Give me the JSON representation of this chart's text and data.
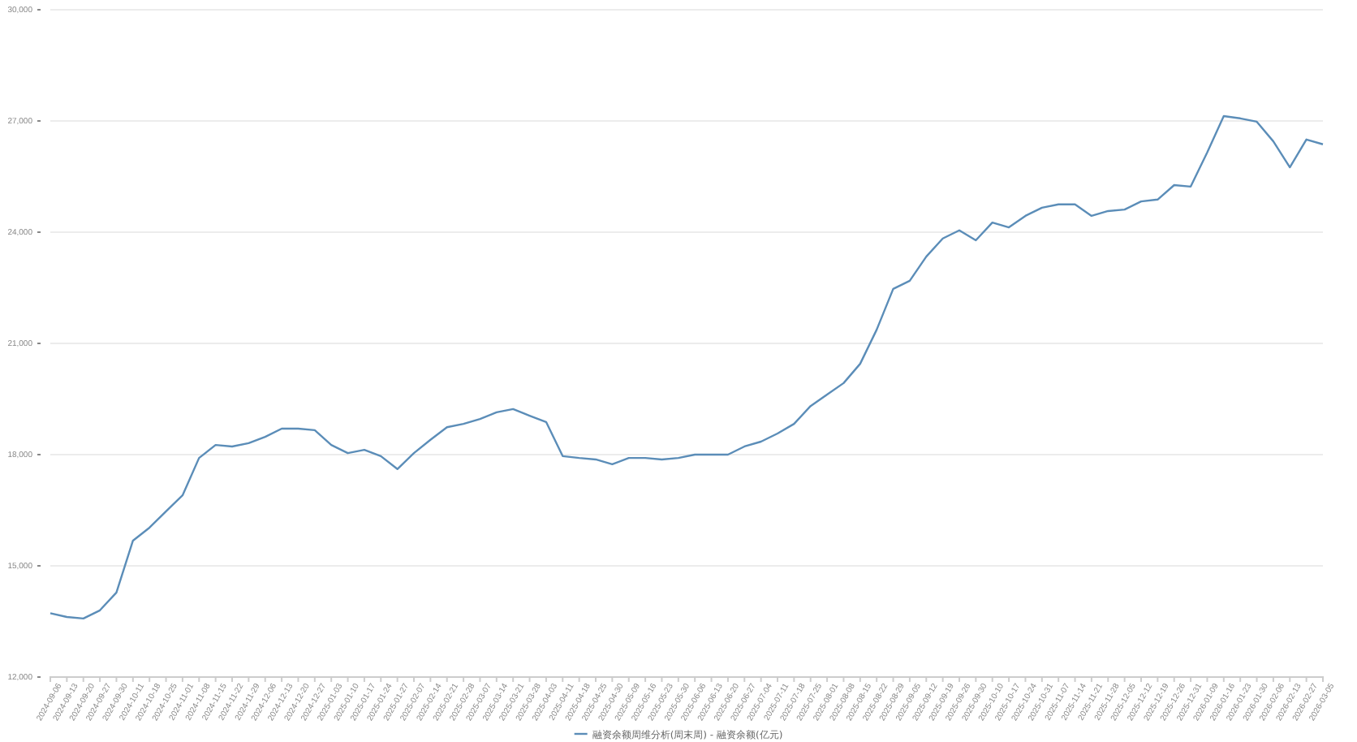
{
  "chart_data": {
    "type": "line",
    "categories": [
      "2024-09-06",
      "2024-09-13",
      "2024-09-20",
      "2024-09-27",
      "2024-09-30",
      "2024-10-11",
      "2024-10-18",
      "2024-10-25",
      "2024-11-01",
      "2024-11-08",
      "2024-11-15",
      "2024-11-22",
      "2024-11-29",
      "2024-12-06",
      "2024-12-13",
      "2024-12-20",
      "2024-12-27",
      "2025-01-03",
      "2025-01-10",
      "2025-01-17",
      "2025-01-24",
      "2025-01-27",
      "2025-02-07",
      "2025-02-14",
      "2025-02-21",
      "2025-02-28",
      "2025-03-07",
      "2025-03-14",
      "2025-03-21",
      "2025-03-28",
      "2025-04-03",
      "2025-04-11",
      "2025-04-18",
      "2025-04-25",
      "2025-04-30",
      "2025-05-09",
      "2025-05-16",
      "2025-05-23",
      "2025-05-30",
      "2025-06-06",
      "2025-06-13",
      "2025-06-20",
      "2025-06-27",
      "2025-07-04",
      "2025-07-11",
      "2025-07-18",
      "2025-07-25",
      "2025-08-01",
      "2025-08-08",
      "2025-08-15",
      "2025-08-22",
      "2025-08-29",
      "2025-09-05",
      "2025-09-12",
      "2025-09-19",
      "2025-09-26",
      "2025-09-30",
      "2025-10-10",
      "2025-10-17",
      "2025-10-24",
      "2025-10-31",
      "2025-11-07",
      "2025-11-14",
      "2025-11-21",
      "2025-11-28",
      "2025-12-05",
      "2025-12-12",
      "2025-12-19",
      "2025-12-26",
      "2025-12-31",
      "2026-01-09",
      "2026-01-16",
      "2026-01-23",
      "2026-01-30",
      "2026-02-06",
      "2026-02-13",
      "2026-02-27",
      "2026-03-05"
    ],
    "series": [
      {
        "name": "融资余额周维分析(周末周) - 融资余额(亿元)",
        "color": "#5b8db8",
        "values": [
          13720,
          13620,
          13580,
          13800,
          14280,
          15680,
          16030,
          16470,
          16900,
          17910,
          18260,
          18220,
          18310,
          18480,
          18700,
          18700,
          18660,
          18260,
          18040,
          18130,
          17960,
          17610,
          18040,
          18400,
          18740,
          18830,
          18960,
          19140,
          19230,
          19050,
          18880,
          17960,
          17910,
          17870,
          17740,
          17910,
          17910,
          17870,
          17910,
          18000,
          18000,
          18000,
          18220,
          18350,
          18570,
          18830,
          19310,
          19620,
          19930,
          20450,
          21370,
          22470,
          22690,
          23340,
          23830,
          24050,
          23780,
          24260,
          24130,
          24440,
          24660,
          24750,
          24750,
          24440,
          24570,
          24610,
          24830,
          24880,
          25270,
          25230,
          26150,
          27130,
          27070,
          26980,
          26450,
          25750,
          26500,
          26370
        ]
      }
    ],
    "ylim": [
      12000,
      30000
    ],
    "yticks": [
      {
        "value": 12000,
        "label": "12,000"
      },
      {
        "value": 15000,
        "label": "15,000"
      },
      {
        "value": 18000,
        "label": "18,000"
      },
      {
        "value": 21000,
        "label": "21,000"
      },
      {
        "value": 24000,
        "label": "24,000"
      },
      {
        "value": 27000,
        "label": "27,000"
      },
      {
        "value": 30000,
        "label": "30,000"
      }
    ],
    "grid": "y",
    "legend": "bottom",
    "marker": "none",
    "line_style": "solid"
  }
}
